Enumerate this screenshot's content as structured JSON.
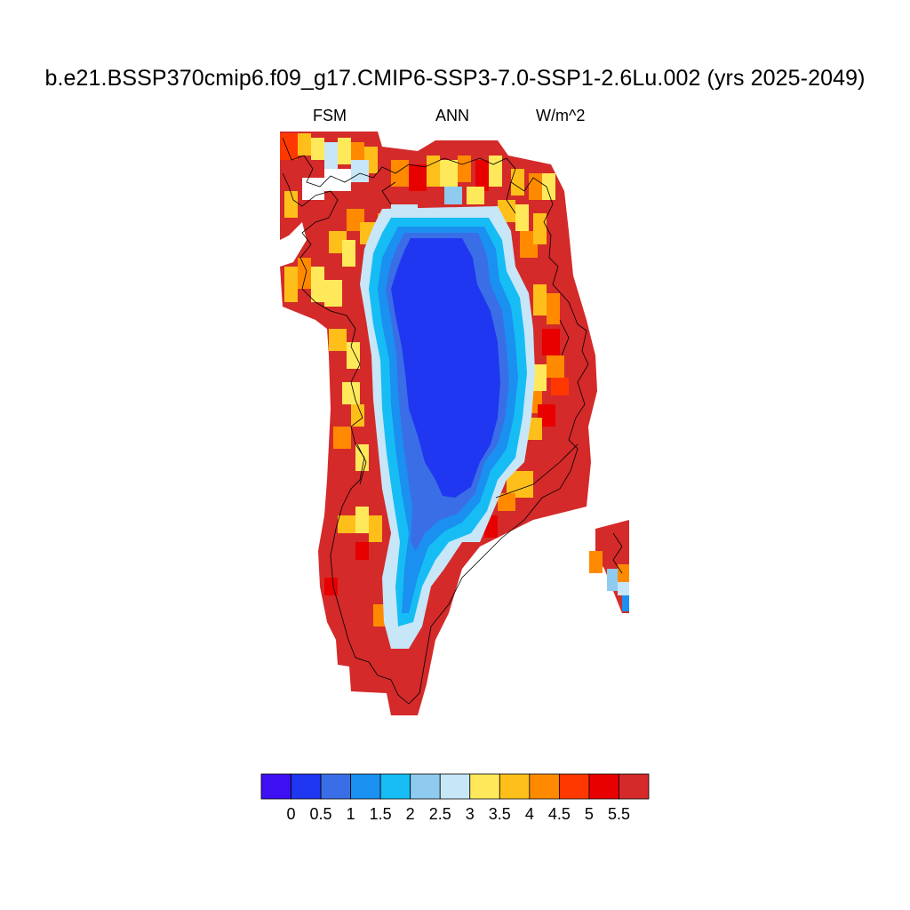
{
  "title": "b.e21.BSSP370cmip6.f09_g17.CMIP6-SSP3-7.0-SSP1-2.6Lu.002 (yrs 2025-2049)",
  "left_label": "FSM",
  "center_label": "ANN",
  "right_label": "W/m^2",
  "colorbar": {
    "colors": [
      "#3d0ff2",
      "#1f37f0",
      "#3a6ee6",
      "#1a90f0",
      "#16bdf4",
      "#8ecbef",
      "#c7e6f8",
      "#ffe95a",
      "#ffbf1a",
      "#ff8a00",
      "#ff3800",
      "#e80000",
      "#d42a2a"
    ],
    "labels": [
      "0",
      "0.5",
      "1",
      "1.5",
      "2",
      "2.5",
      "3",
      "3.5",
      "4",
      "4.5",
      "5",
      "5.5"
    ]
  }
}
